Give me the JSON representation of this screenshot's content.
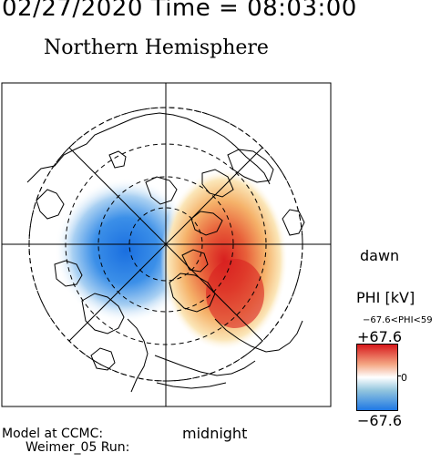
{
  "header": {
    "datetime": "02/27/2020 Time = 08:03:00",
    "title": "Northern Hemisphere"
  },
  "map": {
    "dawn_label": "dawn",
    "midnight_label": "midnight"
  },
  "footer": {
    "model_line1": "Model at CCMC:",
    "model_line2": "Weimer_05 Run:"
  },
  "colorbar": {
    "title": "PHI [kV]",
    "range_text": "−67.6<PHI<59",
    "max_label": "+67.6",
    "zero_label": "0",
    "min_label": "−67.6",
    "colors": [
      "#d7191c",
      "#f4a582",
      "#ffffff",
      "#92c5de",
      "#1f78e4"
    ]
  }
}
